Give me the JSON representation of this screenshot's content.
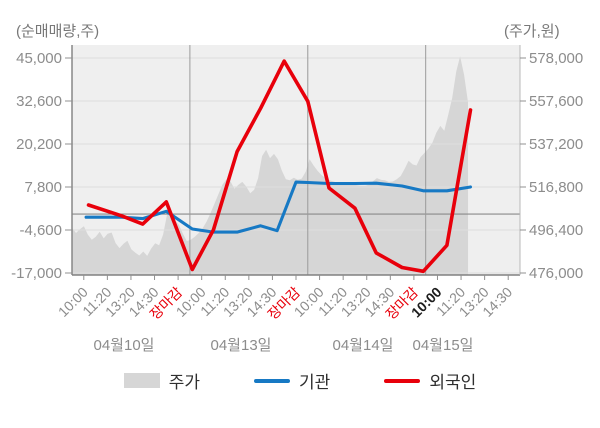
{
  "chart_data": {
    "type": "area",
    "subtype": "intraday stock price area (right axis) with institution/foreigner net-buy volume lines (left axis)",
    "left_axis": {
      "title": "(순매매량,주)",
      "tick_labels": [
        "45,000",
        "32,600",
        "20,200",
        "7,800",
        "-4,600",
        "-17,000"
      ],
      "tick_values": [
        45000,
        32600,
        20200,
        7800,
        -4600,
        -17000
      ],
      "range": [
        -17000,
        45000
      ]
    },
    "right_axis": {
      "title": "(주가,원)",
      "tick_labels": [
        "578,000",
        "557,600",
        "537,200",
        "516,800",
        "496,400",
        "476,000"
      ],
      "tick_values": [
        578000,
        557600,
        537200,
        516800,
        496400,
        476000
      ],
      "range": [
        476000,
        578000
      ]
    },
    "x_axis": {
      "tick_labels": [
        "10:00",
        "11:20",
        "13:20",
        "14:30",
        "장마감",
        "10:00",
        "11:20",
        "13:20",
        "14:30",
        "장마감",
        "10:00",
        "11:20",
        "13:20",
        "14:30",
        "장마감",
        "10:00",
        "11:20",
        "13:20",
        "14:30"
      ],
      "market_close_label": "장마감",
      "market_close_indices": [
        4,
        9,
        14
      ],
      "highlighted_tick_index": 15,
      "date_labels": [
        "04월10일",
        "04월13일",
        "04월14일",
        "04월15일"
      ],
      "day_boundaries_after_tick": [
        4,
        9,
        14
      ]
    },
    "zero_line_value": 0,
    "grid": true,
    "legend_position": "bottom",
    "series": [
      {
        "name": "주가",
        "type": "area",
        "axis": "right",
        "color": "#d6d6d6",
        "x_plot_frac_range": [
          0,
          0.884
        ],
        "values": [
          497500,
          495000,
          496800,
          498200,
          494200,
          491800,
          493200,
          495600,
          492400,
          494600,
          495200,
          490200,
          487800,
          489900,
          491300,
          487200,
          485600,
          484300,
          486200,
          484100,
          487600,
          490100,
          489200,
          494200,
          503600,
          504600,
          500900,
          498900,
          494600,
          491200,
          491800,
          493200,
          495000,
          497200,
          500500,
          504500,
          509000,
          513500,
          518000,
          520500,
          519500,
          516000,
          517800,
          519200,
          517000,
          513800,
          515500,
          521000,
          531500,
          534500,
          530500,
          532500,
          530000,
          524500,
          520500,
          520000,
          521200,
          520200,
          520800,
          524000,
          530000,
          527000,
          524500,
          522500,
          521000,
          520000,
          519400,
          518900,
          518600,
          518400,
          518100,
          517900,
          517600,
          517400,
          517400,
          517900,
          519500,
          521000,
          520200,
          520000,
          519200,
          519400,
          520500,
          522000,
          525500,
          529300,
          527500,
          527000,
          531000,
          533000,
          535000,
          537800,
          542500,
          545800,
          543500,
          551000,
          559000,
          571500,
          578800,
          570000,
          557000
        ]
      },
      {
        "name": "기관",
        "type": "line",
        "axis": "left",
        "color": "#1779c4",
        "points": [
          [
            0.1,
            -900
          ],
          [
            1.6,
            -900
          ],
          [
            2.5,
            -1300
          ],
          [
            3.5,
            800
          ],
          [
            4.6,
            -4300
          ],
          [
            5.5,
            -5200
          ],
          [
            6.5,
            -5200
          ],
          [
            7.5,
            -3400
          ],
          [
            8.2,
            -4800
          ],
          [
            9.0,
            9200
          ],
          [
            9.5,
            9100
          ],
          [
            10.4,
            8800
          ],
          [
            11.5,
            8800
          ],
          [
            12.4,
            8900
          ],
          [
            13.5,
            8100
          ],
          [
            14.4,
            6700
          ],
          [
            15.4,
            6700
          ],
          [
            16.4,
            7800
          ]
        ]
      },
      {
        "name": "외국인",
        "type": "line",
        "axis": "left",
        "color": "#e8000b",
        "points": [
          [
            0.2,
            2600
          ],
          [
            1.6,
            -500
          ],
          [
            2.5,
            -2900
          ],
          [
            3.5,
            3500
          ],
          [
            4.6,
            -16000
          ],
          [
            5.5,
            -4500
          ],
          [
            6.5,
            18000
          ],
          [
            7.5,
            30500
          ],
          [
            8.5,
            44100
          ],
          [
            9.5,
            32500
          ],
          [
            10.4,
            7500
          ],
          [
            11.5,
            1700
          ],
          [
            12.4,
            -11200
          ],
          [
            13.5,
            -15400
          ],
          [
            14.4,
            -16500
          ],
          [
            15.4,
            -9000
          ],
          [
            16.4,
            30000
          ]
        ]
      }
    ]
  },
  "colors": {
    "plot_background": "#efefef",
    "area_fill": "#d6d6d6",
    "grid_light": "#dddddd",
    "day_boundary_line": "#9a9a9a",
    "zero_line": "#8a8a8a",
    "axis_line": "#808080",
    "tick_text": "#8c8c8c",
    "institution_blue": "#1779c4",
    "foreigner_red": "#e8000b"
  }
}
